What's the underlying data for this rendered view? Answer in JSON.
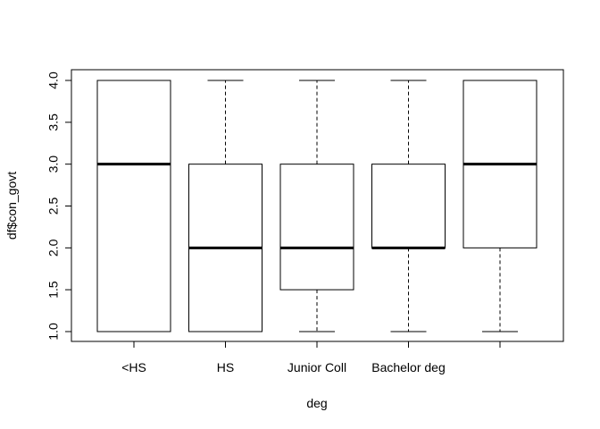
{
  "chart_data": {
    "type": "boxplot",
    "xlabel": "deg",
    "ylabel": "df$con_govt",
    "ylim": [
      1.0,
      4.0
    ],
    "yticks": [
      "1.0",
      "1.5",
      "2.0",
      "2.5",
      "3.0",
      "3.5",
      "4.0"
    ],
    "categories": [
      "<HS",
      "HS",
      "Junior Coll",
      "Bachelor deg",
      ""
    ],
    "boxes": [
      {
        "min": 1.0,
        "q1": 1.0,
        "median": 3.0,
        "q3": 4.0,
        "max": 4.0
      },
      {
        "min": 1.0,
        "q1": 1.0,
        "median": 2.0,
        "q3": 3.0,
        "max": 4.0
      },
      {
        "min": 1.0,
        "q1": 1.5,
        "median": 2.0,
        "q3": 3.0,
        "max": 4.0
      },
      {
        "min": 1.0,
        "q1": 2.0,
        "median": 2.0,
        "q3": 3.0,
        "max": 4.0
      },
      {
        "min": 1.0,
        "q1": 2.0,
        "median": 3.0,
        "q3": 4.0,
        "max": 4.0
      }
    ],
    "grid": false,
    "legend": "none"
  }
}
